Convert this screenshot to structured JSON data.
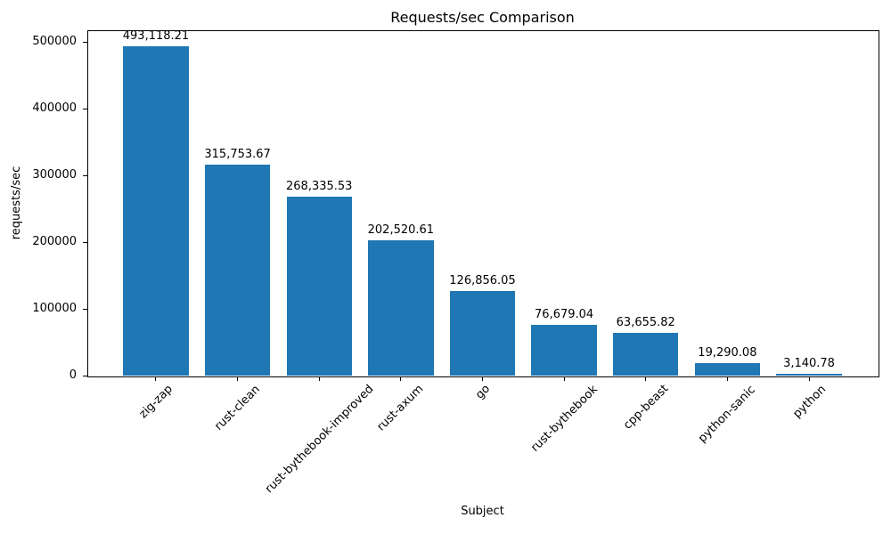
{
  "chart_data": {
    "type": "bar",
    "title": "Requests/sec Comparison",
    "xlabel": "Subject",
    "ylabel": "requests/sec",
    "categories": [
      "zig-zap",
      "rust-clean",
      "rust-bythebook-improved",
      "rust-axum",
      "go",
      "rust-bythebook",
      "cpp-beast",
      "python-sanic",
      "python"
    ],
    "values": [
      493118.21,
      315753.67,
      268335.53,
      202520.61,
      126856.05,
      76679.04,
      63655.82,
      19290.08,
      3140.78
    ],
    "value_labels": [
      "493,118.21",
      "315,753.67",
      "268,335.53",
      "202,520.61",
      "126,856.05",
      "76,679.04",
      "63,655.82",
      "19,290.08",
      "3,140.78"
    ],
    "yticks": [
      0,
      100000,
      200000,
      300000,
      400000,
      500000
    ],
    "ytick_labels": [
      "0",
      "100000",
      "200000",
      "300000",
      "400000",
      "500000"
    ],
    "ylim": [
      0,
      517774
    ],
    "bar_color": "#1f77b4",
    "bar_width_fraction": 0.8,
    "x_margin_fraction": 0.05,
    "tick_rotation_deg": 45,
    "grid": false,
    "legend": null,
    "spine_color": "#000000",
    "background_color": "#ffffff",
    "text_color": "#000000"
  }
}
